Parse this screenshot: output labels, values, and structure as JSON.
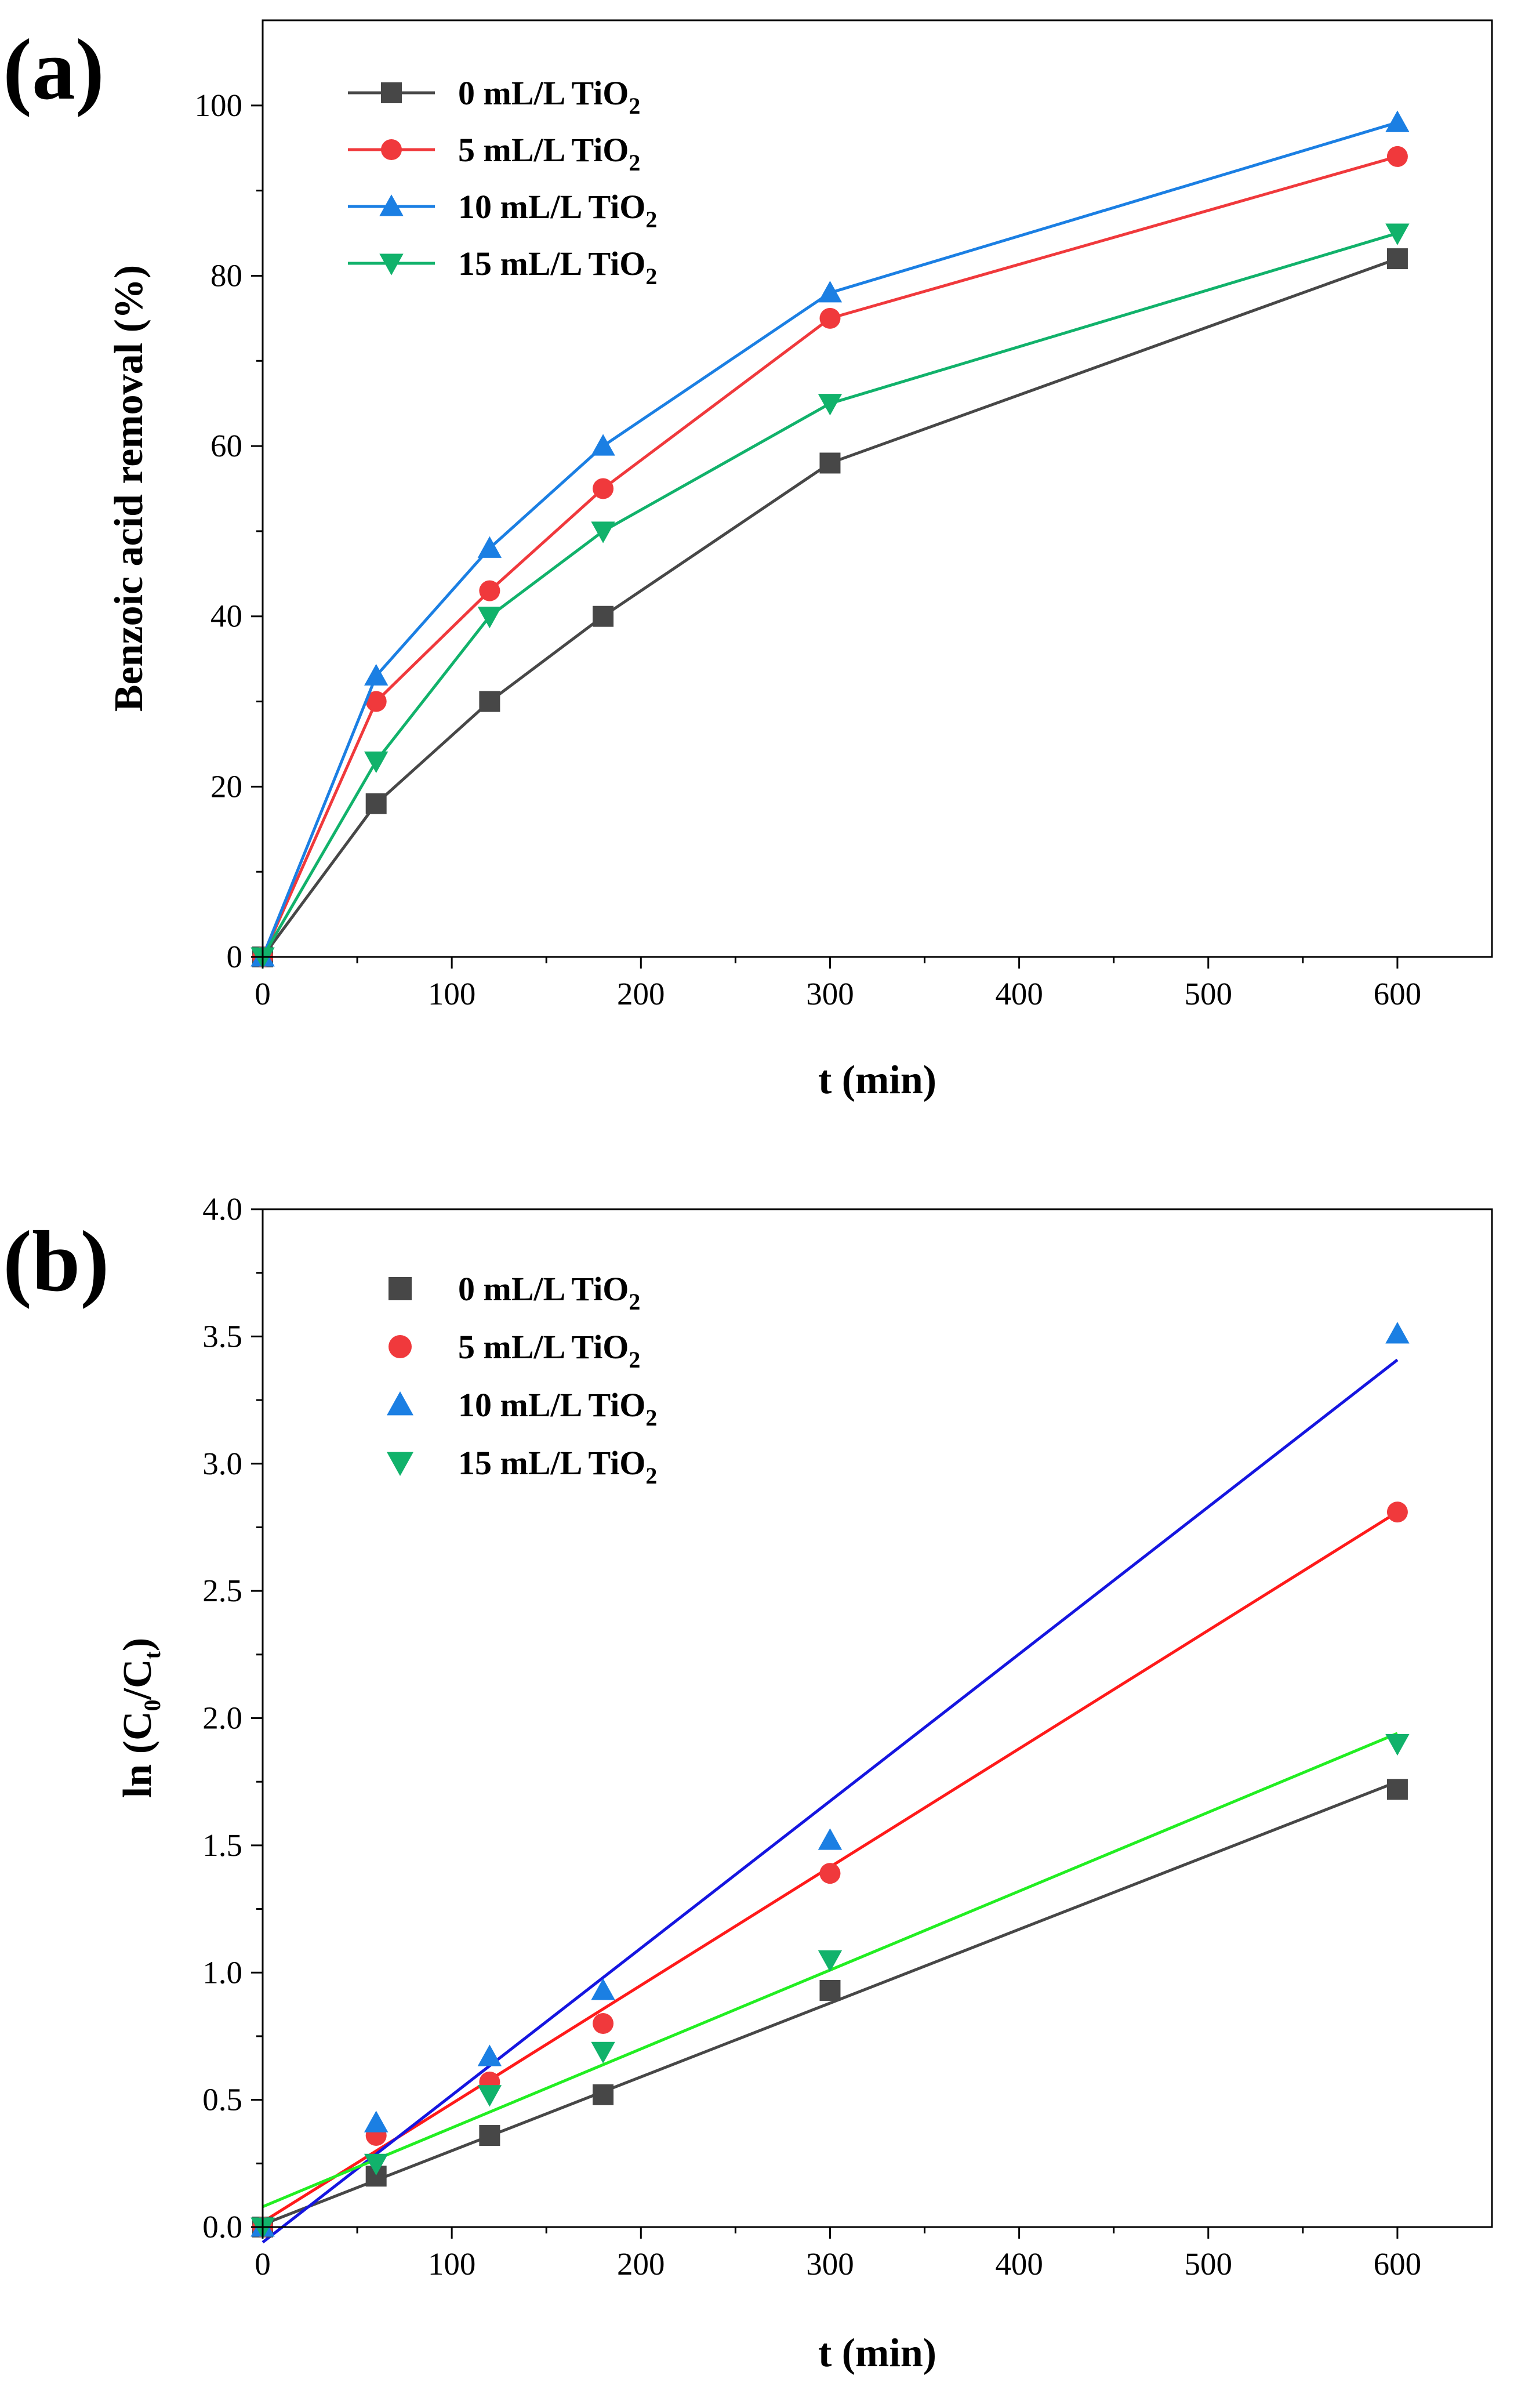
{
  "chart_data": [
    {
      "id": "a",
      "type": "line",
      "panel_label": "(a)",
      "xlabel": "t (min)",
      "ylabel": "Benzoic acid removal (%)",
      "xlim": [
        0,
        650
      ],
      "ylim": [
        0,
        110
      ],
      "xticks": [
        0,
        100,
        200,
        300,
        400,
        500,
        600
      ],
      "yticks": [
        0,
        20,
        40,
        60,
        80,
        100
      ],
      "x": [
        0,
        60,
        120,
        180,
        300,
        600
      ],
      "legend_position": "top-left",
      "series": [
        {
          "name_main": "0 mL/L TiO",
          "name_sub": "2",
          "color": "#474747",
          "marker": "square",
          "values": [
            0,
            18,
            30,
            40,
            58,
            82
          ]
        },
        {
          "name_main": "5 mL/L TiO",
          "name_sub": "2",
          "color": "#f0393c",
          "marker": "circle",
          "values": [
            0,
            30,
            43,
            55,
            75,
            94
          ]
        },
        {
          "name_main": "10 mL/L TiO",
          "name_sub": "2",
          "color": "#1b7fe3",
          "marker": "triangle-up",
          "values": [
            0,
            33,
            48,
            60,
            78,
            98
          ]
        },
        {
          "name_main": "15 mL/L TiO",
          "name_sub": "2",
          "color": "#11b26b",
          "marker": "triangle-down",
          "values": [
            0,
            23,
            40,
            50,
            65,
            85
          ]
        }
      ]
    },
    {
      "id": "b",
      "type": "scatter",
      "panel_label": "(b)",
      "xlabel": "t (min)",
      "ylabel_main": "ln (C",
      "ylabel_sub1": "0",
      "ylabel_mid": "/C",
      "ylabel_sub2": "t",
      "ylabel_end": ")",
      "xlim": [
        0,
        650
      ],
      "ylim": [
        0,
        4.0
      ],
      "xticks": [
        0,
        100,
        200,
        300,
        400,
        500,
        600
      ],
      "yticks": [
        0.0,
        0.5,
        1.0,
        1.5,
        2.0,
        2.5,
        3.0,
        3.5,
        4.0
      ],
      "ytick_labels": [
        "0.0",
        "0.5",
        "1.0",
        "1.5",
        "2.0",
        "2.5",
        "3.0",
        "3.5",
        "4.0"
      ],
      "x": [
        0,
        60,
        120,
        180,
        300,
        600
      ],
      "legend_position": "top-left",
      "series": [
        {
          "name_main": "0 mL/L TiO",
          "name_sub": "2",
          "color": "#474747",
          "fit_color": "#474747",
          "marker": "square",
          "values": [
            0,
            0.2,
            0.36,
            0.52,
            0.93,
            1.72
          ],
          "fit": [
            0.01,
            0.0029
          ]
        },
        {
          "name_main": "5 mL/L TiO",
          "name_sub": "2",
          "color": "#f0393c",
          "fit_color": "#ff1a1a",
          "marker": "circle",
          "values": [
            0,
            0.36,
            0.57,
            0.8,
            1.39,
            2.81
          ],
          "fit": [
            0.02,
            0.00465
          ]
        },
        {
          "name_main": "10 mL/L TiO",
          "name_sub": "2",
          "color": "#1b7fe3",
          "fit_color": "#1515e0",
          "marker": "triangle-up",
          "values": [
            0,
            0.41,
            0.67,
            0.93,
            1.52,
            3.51
          ],
          "fit": [
            -0.06,
            0.00578
          ]
        },
        {
          "name_main": "15 mL/L TiO",
          "name_sub": "2",
          "color": "#11b26b",
          "fit_color": "#22ee22",
          "marker": "triangle-down",
          "values": [
            0,
            0.25,
            0.52,
            0.69,
            1.05,
            1.9
          ],
          "fit": [
            0.08,
            0.0031
          ]
        }
      ]
    }
  ]
}
